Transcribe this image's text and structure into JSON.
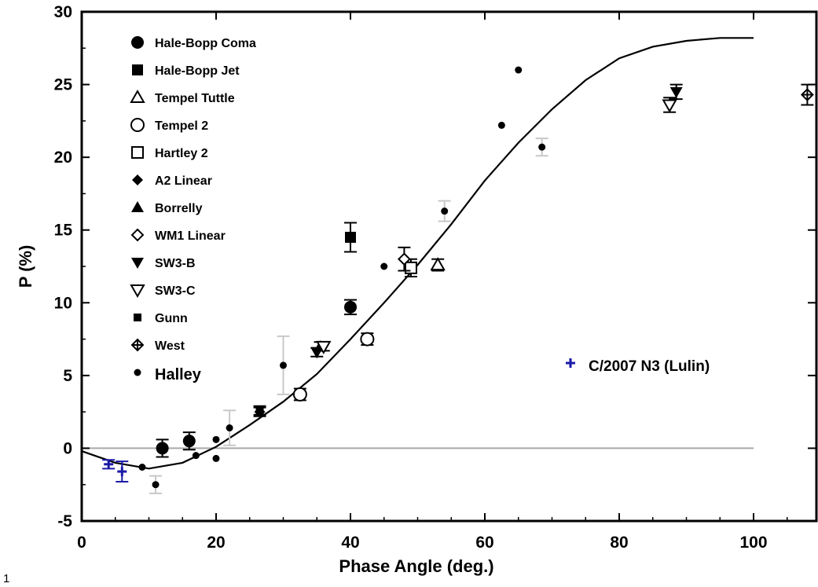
{
  "figure_number": "1",
  "chart_data": {
    "type": "scatter",
    "xlabel": "Phase Angle (deg.)",
    "ylabel": "P (%)",
    "xlim": [
      0,
      110
    ],
    "ylim": [
      -5,
      30
    ],
    "x_ticks": [
      0,
      20,
      40,
      60,
      80,
      100
    ],
    "y_ticks": [
      -5,
      0,
      5,
      10,
      15,
      20,
      25,
      30
    ],
    "zero_line": true,
    "legend_position": "top-left",
    "annotations": [
      {
        "text": "C/2007 N3 (Lulin)",
        "marker": "cross",
        "color": "#1a1aa8"
      }
    ],
    "series": [
      {
        "name": "Hale-Bopp Coma",
        "marker": "circle-filled-large",
        "color": "#000000",
        "points": [
          {
            "x": 12,
            "y": 0.0,
            "err": 0.6
          },
          {
            "x": 16,
            "y": 0.5,
            "err": 0.6
          },
          {
            "x": 40,
            "y": 9.7,
            "err": 0.5
          }
        ]
      },
      {
        "name": "Hale-Bopp Jet",
        "marker": "square-filled",
        "color": "#000000",
        "points": [
          {
            "x": 40,
            "y": 14.5,
            "err": 1.0
          }
        ]
      },
      {
        "name": "Tempel Tuttle",
        "marker": "triangle-up-open",
        "color": "#000000",
        "points": [
          {
            "x": 53,
            "y": 12.6,
            "err": 0.4
          }
        ]
      },
      {
        "name": "Tempel 2",
        "marker": "circle-open",
        "color": "#000000",
        "points": [
          {
            "x": 32.5,
            "y": 3.7,
            "err": 0.4
          },
          {
            "x": 42.5,
            "y": 7.5,
            "err": 0.4
          }
        ]
      },
      {
        "name": "Hartley 2",
        "marker": "square-open",
        "color": "#000000",
        "points": [
          {
            "x": 49,
            "y": 12.4,
            "err": 0.6
          }
        ]
      },
      {
        "name": "A2 Linear",
        "marker": "diamond-filled",
        "color": "#000000",
        "points": [
          {
            "x": 26.5,
            "y": 2.5,
            "err": 0.3
          }
        ]
      },
      {
        "name": "Borrelly",
        "marker": "triangle-up-filled",
        "color": "#000000",
        "points": [
          {
            "x": 35.5,
            "y": 7.0,
            "err": 0.3
          }
        ]
      },
      {
        "name": "WM1 Linear",
        "marker": "diamond-open",
        "color": "#000000",
        "points": [
          {
            "x": 48,
            "y": 13.0,
            "err": 0.8
          }
        ]
      },
      {
        "name": "SW3-B",
        "marker": "triangle-down-filled",
        "color": "#000000",
        "points": [
          {
            "x": 35,
            "y": 6.6,
            "err": 0.3
          },
          {
            "x": 88.5,
            "y": 24.5,
            "err": 0.5
          }
        ]
      },
      {
        "name": "SW3-C",
        "marker": "triangle-down-open",
        "color": "#000000",
        "points": [
          {
            "x": 36,
            "y": 7.0,
            "err": 0.3
          },
          {
            "x": 87.5,
            "y": 23.6,
            "err": 0.5
          }
        ]
      },
      {
        "name": "Gunn",
        "marker": "square-filled-small",
        "color": "#000000",
        "points": [
          {
            "x": 26.5,
            "y": 2.6,
            "err": 0.3
          }
        ]
      },
      {
        "name": "West",
        "marker": "crossed-diamond",
        "color": "#000000",
        "points": [
          {
            "x": 108,
            "y": 24.3,
            "err": 0.7
          }
        ]
      },
      {
        "name": "Halley",
        "marker": "dot",
        "color": "#000000",
        "points": [
          {
            "x": 9,
            "y": -1.3
          },
          {
            "x": 11,
            "y": -2.5,
            "err": 0.6
          },
          {
            "x": 17,
            "y": -0.5
          },
          {
            "x": 20,
            "y": 0.6
          },
          {
            "x": 20,
            "y": -0.7
          },
          {
            "x": 22,
            "y": 1.4,
            "err": 1.2
          },
          {
            "x": 30,
            "y": 5.7,
            "err": 2.0
          },
          {
            "x": 45,
            "y": 12.5
          },
          {
            "x": 54,
            "y": 16.3,
            "err": 0.7
          },
          {
            "x": 62.5,
            "y": 22.2
          },
          {
            "x": 65,
            "y": 26.0
          },
          {
            "x": 68.5,
            "y": 20.7,
            "err": 0.6
          }
        ]
      },
      {
        "name": "C/2007 N3 (Lulin)",
        "marker": "cross",
        "color": "#1a1aa8",
        "points": [
          {
            "x": 4,
            "y": -1.1,
            "err": 0.3
          },
          {
            "x": 6,
            "y": -1.6,
            "err": 0.7
          }
        ]
      },
      {
        "name": "",
        "marker": "line",
        "color": "#000000",
        "points": [
          {
            "x": 0,
            "y": -0.2
          },
          {
            "x": 5,
            "y": -1.0
          },
          {
            "x": 10,
            "y": -1.4
          },
          {
            "x": 15,
            "y": -1.0
          },
          {
            "x": 20,
            "y": 0.1
          },
          {
            "x": 25,
            "y": 1.6
          },
          {
            "x": 30,
            "y": 3.2
          },
          {
            "x": 35,
            "y": 5.1
          },
          {
            "x": 40,
            "y": 7.5
          },
          {
            "x": 45,
            "y": 10.0
          },
          {
            "x": 50,
            "y": 12.6
          },
          {
            "x": 55,
            "y": 15.4
          },
          {
            "x": 60,
            "y": 18.4
          },
          {
            "x": 65,
            "y": 21.0
          },
          {
            "x": 70,
            "y": 23.3
          },
          {
            "x": 75,
            "y": 25.3
          },
          {
            "x": 80,
            "y": 26.8
          },
          {
            "x": 85,
            "y": 27.6
          },
          {
            "x": 90,
            "y": 28.0
          },
          {
            "x": 95,
            "y": 28.2
          },
          {
            "x": 100,
            "y": 28.2
          }
        ]
      }
    ]
  }
}
